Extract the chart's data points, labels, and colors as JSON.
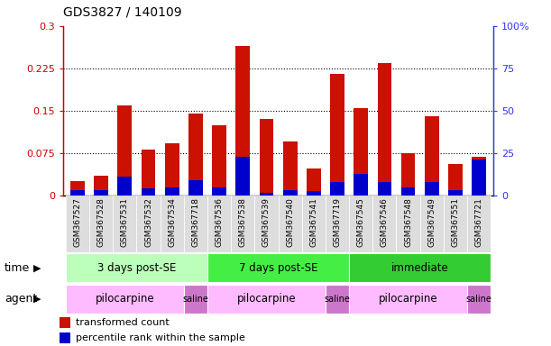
{
  "title": "GDS3827 / 140109",
  "samples": [
    "GSM367527",
    "GSM367528",
    "GSM367531",
    "GSM367532",
    "GSM367534",
    "GSM367718",
    "GSM367536",
    "GSM367538",
    "GSM367539",
    "GSM367540",
    "GSM367541",
    "GSM367719",
    "GSM367545",
    "GSM367546",
    "GSM367548",
    "GSM367549",
    "GSM367551",
    "GSM367721"
  ],
  "red_values": [
    0.025,
    0.035,
    0.16,
    0.082,
    0.092,
    0.145,
    0.125,
    0.265,
    0.135,
    0.095,
    0.048,
    0.215,
    0.155,
    0.235,
    0.075,
    0.14,
    0.055,
    0.068
  ],
  "blue_values": [
    0.01,
    0.01,
    0.033,
    0.012,
    0.014,
    0.027,
    0.014,
    0.068,
    0.005,
    0.01,
    0.008,
    0.024,
    0.038,
    0.024,
    0.015,
    0.024,
    0.01,
    0.063
  ],
  "ylim_left": [
    0,
    0.3
  ],
  "ylim_right": [
    0,
    100
  ],
  "yticks_left": [
    0,
    0.075,
    0.15,
    0.225,
    0.3
  ],
  "ytick_labels_left": [
    "0",
    "0.075",
    "0.15",
    "0.225",
    "0.3"
  ],
  "yticks_right": [
    0,
    25,
    50,
    75,
    100
  ],
  "ytick_labels_right": [
    "0",
    "25",
    "50",
    "75",
    "100%"
  ],
  "left_axis_color": "#cc0000",
  "right_axis_color": "#3333ff",
  "bar_red_color": "#cc1100",
  "bar_blue_color": "#0000cc",
  "time_groups": [
    {
      "label": "3 days post-SE",
      "start": 0,
      "end": 5,
      "color": "#bbffbb"
    },
    {
      "label": "7 days post-SE",
      "start": 6,
      "end": 11,
      "color": "#44ee44"
    },
    {
      "label": "immediate",
      "start": 12,
      "end": 17,
      "color": "#33cc33"
    }
  ],
  "agent_groups": [
    {
      "label": "pilocarpine",
      "start": 0,
      "end": 4,
      "color": "#ffbbff"
    },
    {
      "label": "saline",
      "start": 5,
      "end": 5,
      "color": "#cc77cc"
    },
    {
      "label": "pilocarpine",
      "start": 6,
      "end": 10,
      "color": "#ffbbff"
    },
    {
      "label": "saline",
      "start": 11,
      "end": 11,
      "color": "#cc77cc"
    },
    {
      "label": "pilocarpine",
      "start": 12,
      "end": 16,
      "color": "#ffbbff"
    },
    {
      "label": "saline",
      "start": 17,
      "end": 17,
      "color": "#cc77cc"
    }
  ],
  "legend_items": [
    {
      "label": "transformed count",
      "color": "#cc1100"
    },
    {
      "label": "percentile rank within the sample",
      "color": "#0000cc"
    }
  ],
  "tick_bg_color": "#dddddd"
}
